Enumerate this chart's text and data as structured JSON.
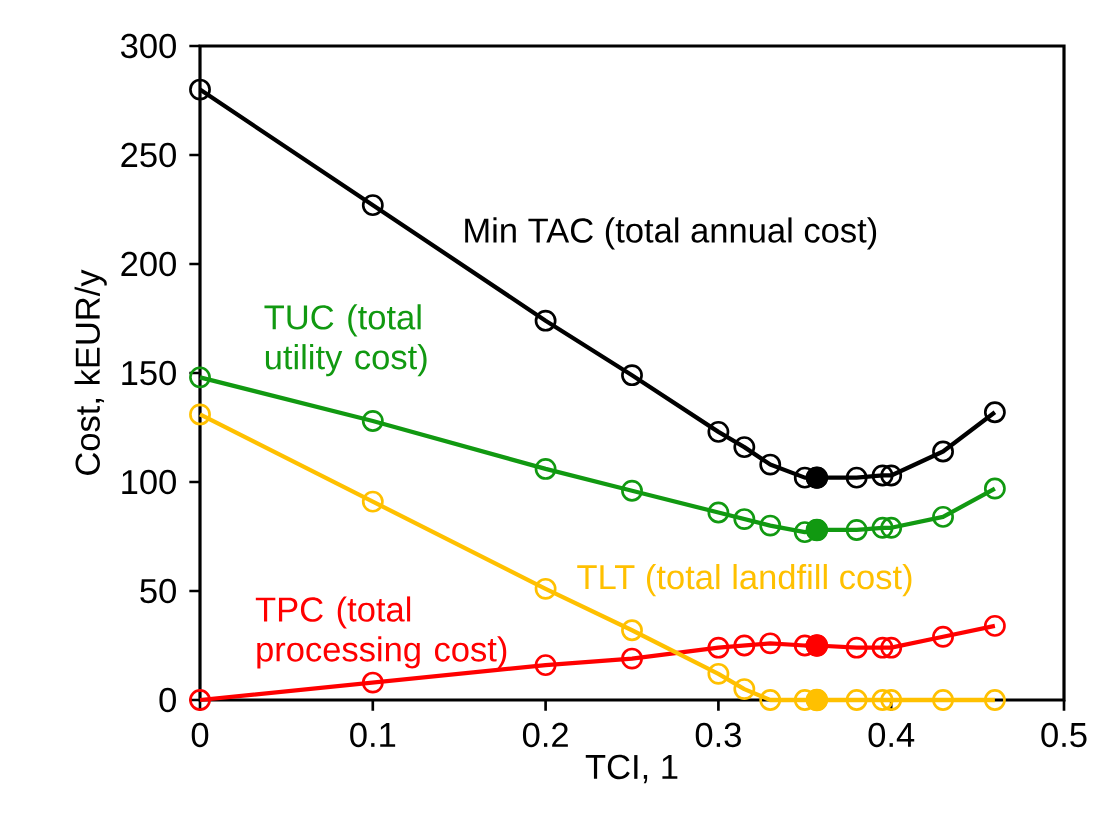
{
  "chart_data": {
    "type": "line",
    "xlabel": "TCI, 1",
    "ylabel": "Cost, kEUR/y",
    "xlim": [
      0,
      0.5
    ],
    "ylim": [
      0,
      300
    ],
    "xticks": [
      0,
      0.1,
      0.2,
      0.3,
      0.4,
      0.5
    ],
    "yticks": [
      0,
      50,
      100,
      150,
      200,
      250,
      300
    ],
    "marker": "circle",
    "series": [
      {
        "name": "Min TAC (total annual cost)",
        "color": "#000000",
        "x": [
          0,
          0.1,
          0.2,
          0.25,
          0.3,
          0.315,
          0.33,
          0.35,
          0.357,
          0.38,
          0.395,
          0.4,
          0.43,
          0.46
        ],
        "values": [
          280,
          227,
          174,
          149,
          123,
          116,
          108,
          102,
          102,
          102,
          103,
          103,
          114,
          132
        ]
      },
      {
        "name": "TUC (total utility cost)",
        "color": "#119911",
        "x": [
          0,
          0.1,
          0.2,
          0.25,
          0.3,
          0.315,
          0.33,
          0.35,
          0.357,
          0.38,
          0.395,
          0.4,
          0.43,
          0.46
        ],
        "values": [
          148,
          128,
          106,
          96,
          86,
          83,
          80,
          77,
          78,
          78,
          79,
          79,
          84,
          97
        ]
      },
      {
        "name": "TPC (total processing cost)",
        "color": "#ff0000",
        "x": [
          0,
          0.1,
          0.2,
          0.25,
          0.3,
          0.315,
          0.33,
          0.35,
          0.357,
          0.38,
          0.395,
          0.4,
          0.43,
          0.46
        ],
        "values": [
          0,
          8,
          16,
          19,
          24,
          25,
          26,
          25,
          25,
          24,
          24,
          24,
          29,
          34
        ]
      },
      {
        "name": "TLT (total landfill cost)",
        "color": "#ffc000",
        "x": [
          0,
          0.1,
          0.2,
          0.25,
          0.3,
          0.315,
          0.33,
          0.35,
          0.357,
          0.38,
          0.395,
          0.4,
          0.43,
          0.46
        ],
        "values": [
          131,
          91,
          51,
          32,
          12,
          5,
          0,
          0,
          0,
          0,
          0,
          0,
          0,
          0
        ]
      },
      {
        "type": "scatter",
        "color": "#000000",
        "x": [
          0.357
        ],
        "values": [
          102
        ]
      },
      {
        "type": "scatter",
        "color": "#119911",
        "x": [
          0.357
        ],
        "values": [
          78
        ]
      },
      {
        "type": "scatter",
        "color": "#ff0000",
        "x": [
          0.357
        ],
        "values": [
          25
        ]
      },
      {
        "type": "scatter",
        "color": "#ffc000",
        "x": [
          0.357
        ],
        "values": [
          0
        ]
      }
    ]
  }
}
